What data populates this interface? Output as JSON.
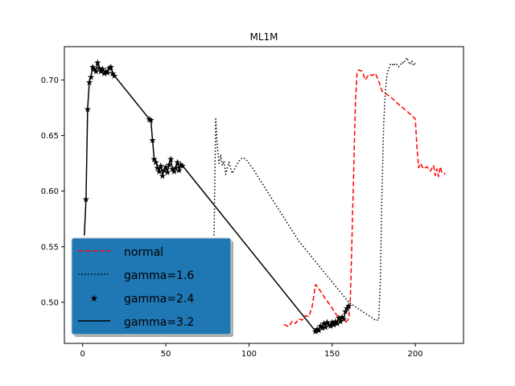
{
  "chart_data": {
    "type": "line",
    "title": "ML1M",
    "xlabel": "",
    "ylabel": "",
    "xlim": [
      -11,
      229
    ],
    "ylim": [
      0.463,
      0.73
    ],
    "xticks": [
      0,
      50,
      100,
      150,
      200
    ],
    "yticks": [
      0.5,
      0.55,
      0.6,
      0.65,
      0.7
    ],
    "ytick_labels": [
      "0.50",
      "0.55",
      "0.60",
      "0.65",
      "0.70"
    ],
    "grid": false,
    "legend": {
      "placement": "lower-left",
      "background": "#1f77b4"
    },
    "series": [
      {
        "name": "normal",
        "color": "#ff0000",
        "style": "dashed",
        "x": [
          121,
          124,
          126,
          128,
          130,
          132,
          134,
          136,
          138,
          140,
          143,
          146,
          149,
          152,
          155,
          158,
          160,
          161,
          162,
          163,
          164,
          165,
          166,
          168,
          170,
          172,
          174,
          176,
          178,
          180,
          185,
          190,
          195,
          200,
          201,
          202,
          203,
          205,
          207,
          209,
          211,
          212,
          213,
          214,
          215,
          216,
          217,
          218
        ],
        "y": [
          0.48,
          0.478,
          0.483,
          0.481,
          0.485,
          0.484,
          0.488,
          0.487,
          0.496,
          0.516,
          0.51,
          0.503,
          0.497,
          0.49,
          0.484,
          0.482,
          0.485,
          0.505,
          0.56,
          0.62,
          0.68,
          0.706,
          0.709,
          0.708,
          0.7,
          0.705,
          0.704,
          0.706,
          0.699,
          0.69,
          0.685,
          0.678,
          0.672,
          0.665,
          0.64,
          0.621,
          0.625,
          0.62,
          0.622,
          0.618,
          0.623,
          0.614,
          0.62,
          0.613,
          0.622,
          0.617,
          0.617,
          0.615
        ]
      },
      {
        "name": "gamma=1.6",
        "color": "#000000",
        "style": "dotted",
        "x": [
          79,
          80,
          81,
          82,
          83,
          84,
          85,
          86,
          87,
          88,
          89,
          90,
          92,
          94,
          96,
          98,
          100,
          102,
          130,
          160,
          176,
          178,
          179,
          180,
          181,
          182,
          183,
          184,
          185,
          186,
          187,
          188,
          189,
          190,
          191,
          192,
          193,
          194,
          195,
          196,
          197,
          198,
          199,
          200
        ],
        "y": [
          0.56,
          0.665,
          0.64,
          0.625,
          0.633,
          0.623,
          0.627,
          0.615,
          0.621,
          0.626,
          0.62,
          0.616,
          0.622,
          0.627,
          0.63,
          0.629,
          0.625,
          0.621,
          0.555,
          0.5,
          0.484,
          0.484,
          0.52,
          0.6,
          0.66,
          0.69,
          0.705,
          0.71,
          0.714,
          0.713,
          0.715,
          0.713,
          0.714,
          0.712,
          0.713,
          0.716,
          0.715,
          0.718,
          0.72,
          0.716,
          0.714,
          0.717,
          0.713,
          0.715
        ]
      },
      {
        "name": "gamma=2.4",
        "color": "#000000",
        "style": "star-markers",
        "x": [
          2,
          3,
          4,
          5,
          6,
          7,
          8,
          9,
          10,
          11,
          12,
          13,
          14,
          15,
          16,
          17,
          18,
          19,
          40,
          41,
          42,
          43,
          44,
          45,
          46,
          47,
          48,
          49,
          50,
          51,
          52,
          53,
          54,
          55,
          56,
          57,
          58,
          59,
          60,
          140,
          141,
          142,
          143,
          144,
          145,
          146,
          147,
          148,
          149,
          150,
          151,
          152,
          153,
          154,
          155,
          156,
          157,
          158,
          159,
          160
        ],
        "y": [
          0.593,
          0.674,
          0.698,
          0.703,
          0.712,
          0.71,
          0.708,
          0.716,
          0.711,
          0.708,
          0.71,
          0.706,
          0.708,
          0.707,
          0.711,
          0.712,
          0.706,
          0.704,
          0.665,
          0.664,
          0.646,
          0.629,
          0.626,
          0.621,
          0.618,
          0.623,
          0.614,
          0.619,
          0.622,
          0.617,
          0.624,
          0.629,
          0.62,
          0.618,
          0.621,
          0.626,
          0.619,
          0.624,
          0.623,
          0.474,
          0.476,
          0.475,
          0.479,
          0.477,
          0.481,
          0.478,
          0.482,
          0.48,
          0.479,
          0.482,
          0.48,
          0.483,
          0.481,
          0.486,
          0.483,
          0.487,
          0.485,
          0.492,
          0.495,
          0.497
        ]
      },
      {
        "name": "gamma=3.2",
        "color": "#000000",
        "style": "solid",
        "x": [
          1,
          2,
          3,
          4,
          5,
          6,
          7,
          8,
          9,
          10,
          11,
          12,
          13,
          14,
          15,
          16,
          17,
          18,
          19,
          40,
          41,
          42,
          43,
          44,
          45,
          46,
          47,
          48,
          49,
          50,
          51,
          52,
          53,
          54,
          55,
          56,
          57,
          58,
          59,
          60,
          140,
          141,
          142,
          143,
          144,
          145,
          146,
          147,
          148,
          149,
          150,
          151,
          152,
          153,
          154,
          155,
          156,
          157,
          158,
          159,
          160
        ],
        "y": [
          0.56,
          0.593,
          0.674,
          0.698,
          0.703,
          0.712,
          0.71,
          0.708,
          0.716,
          0.711,
          0.708,
          0.71,
          0.706,
          0.708,
          0.707,
          0.711,
          0.712,
          0.706,
          0.704,
          0.665,
          0.664,
          0.646,
          0.629,
          0.626,
          0.621,
          0.618,
          0.623,
          0.614,
          0.619,
          0.622,
          0.617,
          0.624,
          0.629,
          0.62,
          0.618,
          0.621,
          0.626,
          0.619,
          0.624,
          0.623,
          0.474,
          0.476,
          0.475,
          0.479,
          0.477,
          0.481,
          0.478,
          0.482,
          0.48,
          0.479,
          0.482,
          0.48,
          0.483,
          0.481,
          0.486,
          0.483,
          0.487,
          0.485,
          0.492,
          0.495,
          0.497
        ]
      }
    ]
  }
}
